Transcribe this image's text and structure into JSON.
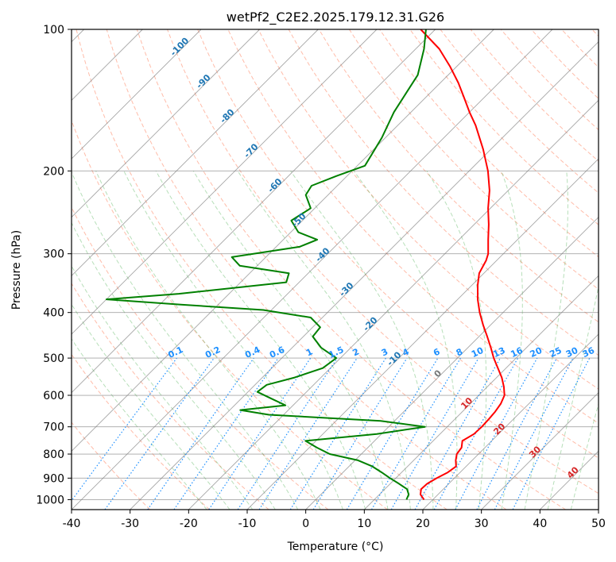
{
  "chart_data": {
    "type": "line",
    "title": "wetPf2_C2E2.2025.179.12.31.G26",
    "xlabel": "Temperature (°C)",
    "ylabel": "Pressure (hPa)",
    "xlim": [
      -40,
      50
    ],
    "ylim": [
      1050,
      100
    ],
    "y_scale": "log",
    "x_ticks": [
      -40,
      -30,
      -20,
      -10,
      0,
      10,
      20,
      30,
      40,
      50
    ],
    "y_ticks": [
      100,
      200,
      300,
      400,
      500,
      600,
      700,
      800,
      900,
      1000
    ],
    "grid": true,
    "colors": {
      "temperature": "#ff0000",
      "dewpoint": "#008000",
      "dry_adiabat": "#ff6a40",
      "moist_adiabat": "#4caf50",
      "mixing_ratio": "#1e90ff",
      "isotherm": "#808080",
      "temperature_label": "#d62728",
      "isotherm_label": "#1f77b4"
    },
    "series": [
      {
        "key": "temperature",
        "p": [
          1000,
          975,
          950,
          925,
          900,
          875,
          850,
          825,
          800,
          775,
          750,
          725,
          700,
          675,
          650,
          625,
          600,
          575,
          550,
          525,
          500,
          475,
          450,
          425,
          400,
          375,
          350,
          330,
          310,
          300,
          280,
          260,
          240,
          220,
          200,
          180,
          160,
          150,
          140,
          130,
          120,
          110,
          100
        ],
        "values": [
          18.5,
          17.0,
          16.2,
          16.3,
          17.0,
          17.9,
          18.3,
          17.2,
          16.3,
          16.0,
          15.0,
          15.8,
          15.9,
          15.8,
          15.6,
          15.2,
          14.4,
          12.8,
          10.9,
          8.6,
          6.2,
          3.9,
          1.4,
          -1.3,
          -4.0,
          -6.6,
          -9.0,
          -10.8,
          -11.8,
          -12.6,
          -15.0,
          -17.5,
          -20.4,
          -23.2,
          -26.8,
          -31.3,
          -36.7,
          -40.0,
          -43.3,
          -46.9,
          -51.1,
          -56.0,
          -62.5
        ]
      },
      {
        "key": "dewpoint",
        "p": [
          1000,
          975,
          950,
          925,
          900,
          875,
          850,
          825,
          800,
          775,
          750,
          725,
          700,
          680,
          660,
          645,
          630,
          610,
          590,
          570,
          550,
          525,
          500,
          475,
          450,
          430,
          410,
          395,
          385,
          375,
          365,
          345,
          330,
          318,
          305,
          290,
          280,
          270,
          255,
          240,
          225,
          215,
          205,
          195,
          170,
          150,
          125,
          110,
          100
        ],
        "values": [
          15.5,
          15.0,
          13.8,
          11.5,
          9.0,
          6.6,
          4.0,
          0.5,
          -5.4,
          -8.7,
          -11.8,
          -0.8,
          6.2,
          -2.4,
          -22.5,
          -28.2,
          -21.3,
          -24.8,
          -28.4,
          -28.0,
          -24.5,
          -21.3,
          -20.7,
          -25.1,
          -28.4,
          -28.7,
          -32.0,
          -41.4,
          -56.1,
          -70.0,
          -58.6,
          -42.2,
          -43.3,
          -53.0,
          -55.8,
          -46.0,
          -44.2,
          -48.7,
          -51.9,
          -50.7,
          -53.8,
          -54.4,
          -51.8,
          -48.7,
          -50.6,
          -52.9,
          -55.2,
          -58.6,
          -61.6
        ]
      }
    ],
    "isotherm_label_values": [
      "-100",
      "-90",
      "-80",
      "-70",
      "-60",
      "-50",
      "-40",
      "-30",
      "-20",
      "-10"
    ],
    "mixing_ratio_labels": [
      "0.1",
      "0.2",
      "0.4",
      "0.6",
      "1",
      "1.5",
      "2",
      "3",
      "4",
      "6",
      "8",
      "10",
      "13",
      "16",
      "20",
      "25",
      "30",
      "36"
    ],
    "mixing_ratio_values": [
      0.1,
      0.2,
      0.4,
      0.6,
      1,
      1.5,
      2,
      3,
      4,
      6,
      8,
      10,
      13,
      16,
      20,
      25,
      30,
      36
    ],
    "upper_isotherm_labels": [
      "0",
      "10",
      "20",
      "30",
      "40"
    ]
  }
}
